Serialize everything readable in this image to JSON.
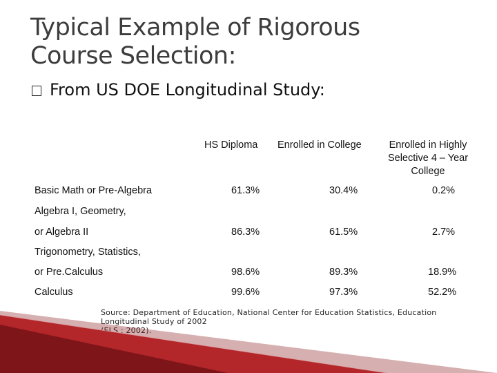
{
  "title": {
    "line1": "Typical Example of Rigorous",
    "line2": "Course Selection:"
  },
  "bullet": {
    "text": "From US DOE Longitudinal Study:"
  },
  "table": {
    "columns": [
      "HS Diploma",
      "Enrolled in College",
      "Enrolled in Highly Selective 4 – Year College"
    ],
    "rows": [
      {
        "label_lines": [
          "Basic Math or Pre-Algebra"
        ],
        "values": [
          "61.3%",
          "30.4%",
          "0.2%"
        ]
      },
      {
        "label_lines": [
          "Algebra I, Geometry,",
          "or Algebra II"
        ],
        "values": [
          "86.3%",
          "61.5%",
          "2.7%"
        ]
      },
      {
        "label_lines": [
          "Trigonometry, Statistics,",
          "or Pre.Calculus"
        ],
        "values": [
          "98.6%",
          "89.3%",
          "18.9%"
        ]
      },
      {
        "label_lines": [
          "Calculus"
        ],
        "values": [
          "99.6%",
          "97.3%",
          "52.2%"
        ]
      }
    ]
  },
  "source": {
    "line1": "Source: Department of Education, National Center for Education Statistics, Education",
    "line2": "Longitudinal Study of 2002",
    "line3": "(ELS : 2002)."
  },
  "colors": {
    "title": "#3d3d3d",
    "accent_red": "#c0262b",
    "dark_red": "#8a1a1e"
  }
}
